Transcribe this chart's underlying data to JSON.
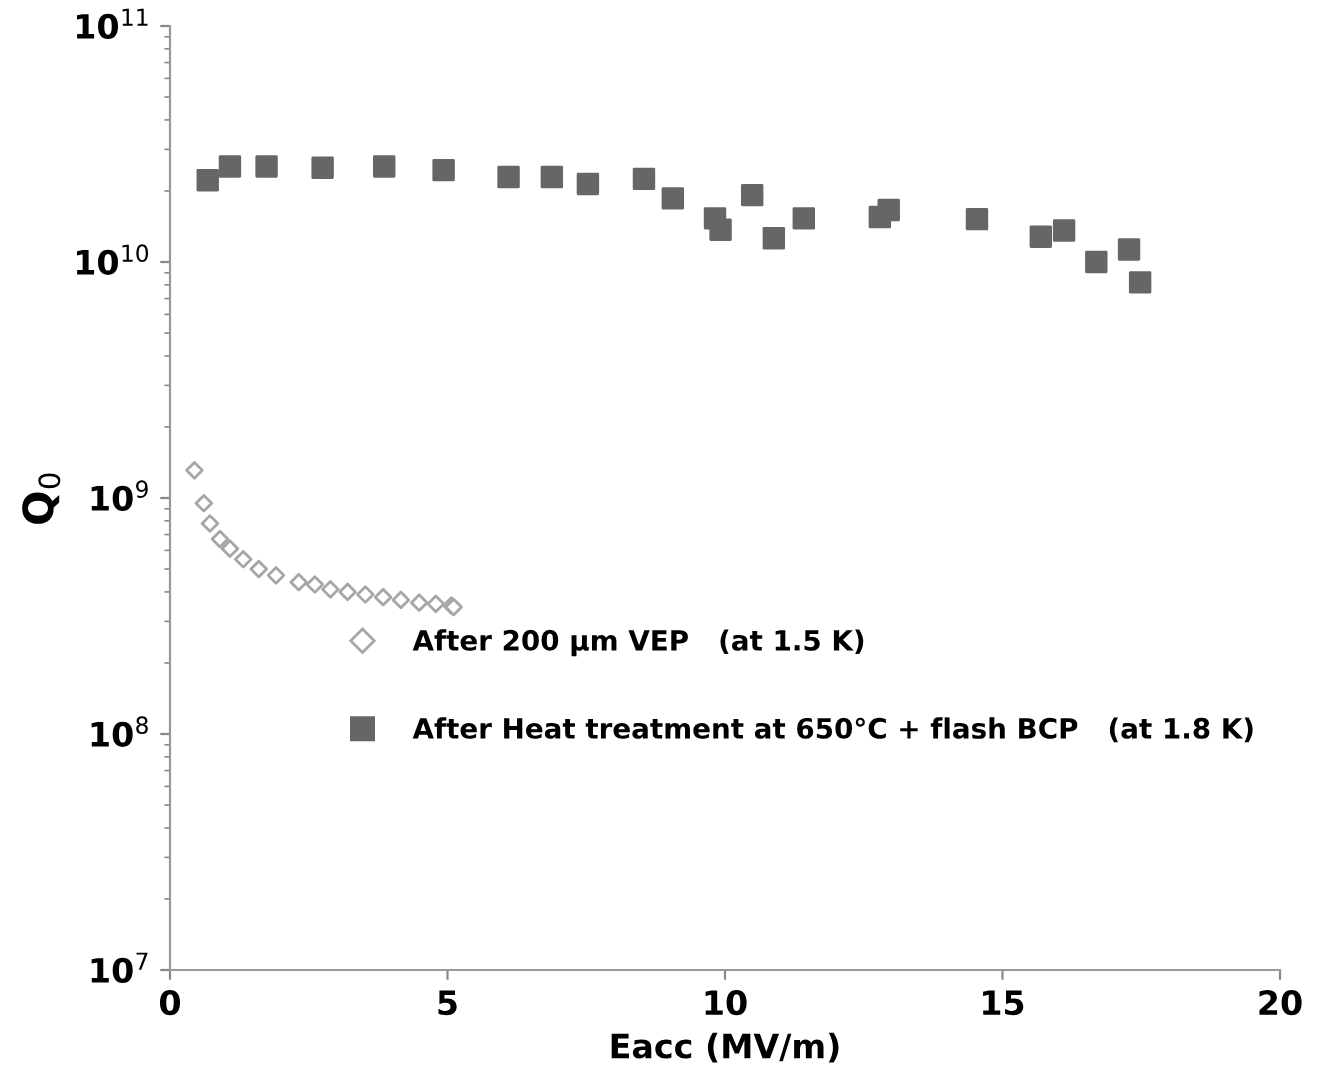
{
  "chart_data": {
    "type": "scatter",
    "xlabel": "Eacc (MV/m)",
    "ylabel": "Q$_{0}$",
    "log": "y",
    "xlim": [
      0,
      20
    ],
    "xticks": [
      0,
      5,
      10,
      15,
      20
    ],
    "ylim": [
      10000000.0,
      100000000000.0
    ],
    "yticks": [
      {
        "value": 10000000.0,
        "label": "10$^{7}$"
      },
      {
        "value": 100000000.0,
        "label": "10$^{8}$"
      },
      {
        "value": 1000000000.0,
        "label": "10$^{9}$"
      },
      {
        "value": 10000000000.0,
        "label": "10$^{10}$"
      },
      {
        "value": 100000000000.0,
        "label": "10$^{11}$"
      }
    ],
    "grid": false,
    "legend": "right",
    "series": [
      {
        "name": "After 200 µm VEP   (at 1.5 K)",
        "color": "#a6a6a6",
        "marker": "diamond",
        "x": [
          0.44,
          0.61,
          0.72,
          0.9,
          1.08,
          1.32,
          1.6,
          1.91,
          2.32,
          2.61,
          2.89,
          3.2,
          3.52,
          3.84,
          4.16,
          4.49,
          4.79,
          5.07,
          5.11
        ],
        "values": [
          1310000000.0,
          950000000.0,
          780000000.0,
          670000000.0,
          610000000.0,
          550000000.0,
          500000000.0,
          470000000.0,
          440000000.0,
          430000000.0,
          410000000.0,
          400000000.0,
          390000000.0,
          380000000.0,
          370000000.0,
          360000000.0,
          356000000.0,
          350000000.0,
          345000000.0
        ]
      },
      {
        "name": "After Heat treatment at 650°C + flash BCP   (at 1.8 K)",
        "color": "#666666",
        "marker": "square",
        "x": [
          0.68,
          1.08,
          1.74,
          2.75,
          3.86,
          4.93,
          6.1,
          6.88,
          7.53,
          8.54,
          9.06,
          9.82,
          9.92,
          10.49,
          10.88,
          11.42,
          12.79,
          12.95,
          14.54,
          15.69,
          16.11,
          16.69,
          17.28,
          17.48
        ],
        "values": [
          22200000000.0,
          25400000000.0,
          25400000000.0,
          25100000000.0,
          25400000000.0,
          24500000000.0,
          22900000000.0,
          22900000000.0,
          21400000000.0,
          22500000000.0,
          18600000000.0,
          15300000000.0,
          13700000000.0,
          19200000000.0,
          12600000000.0,
          15300000000.0,
          15500000000.0,
          16600000000.0,
          15200000000.0,
          12800000000.0,
          13600000000.0,
          10000000000.0,
          11300000000.0,
          8200000000.0
        ]
      }
    ]
  }
}
